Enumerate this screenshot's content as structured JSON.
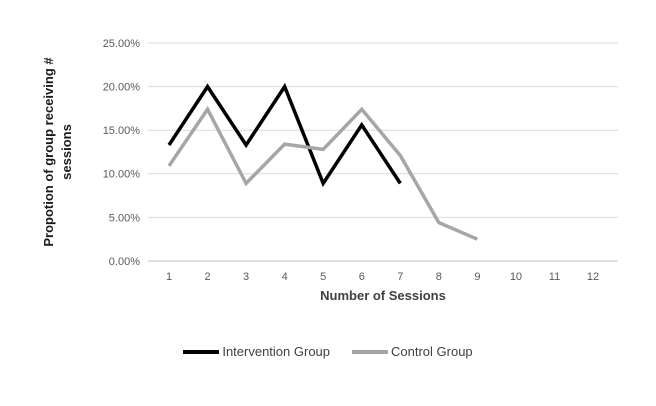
{
  "chart_data": {
    "type": "line",
    "title": "",
    "xlabel": "Number of Sessions",
    "ylabel": "Propotion of group receiving # sessions",
    "ylabel_lines": [
      "Propotion of group receiving #",
      "sessions"
    ],
    "x_categories": [
      "1",
      "2",
      "3",
      "4",
      "5",
      "6",
      "7",
      "8",
      "9",
      "10",
      "11",
      "12"
    ],
    "y_tick_labels": [
      "0.00%",
      "5.00%",
      "10.00%",
      "15.00%",
      "20.00%",
      "25.00%"
    ],
    "ylim": [
      0,
      25
    ],
    "grid": true,
    "legend_position": "bottom",
    "series": [
      {
        "name": "Intervention Group",
        "color": "#000000",
        "values": [
          13.3,
          20.0,
          13.3,
          20.0,
          8.9,
          15.6,
          8.9
        ]
      },
      {
        "name": "Control Group",
        "color": "#a6a6a6",
        "values": [
          10.9,
          17.4,
          8.9,
          13.4,
          12.8,
          17.4,
          12.1,
          4.4,
          2.5
        ]
      }
    ]
  },
  "colors": {
    "gridline": "#d9d9d9",
    "axis_line": "#bfbfbf",
    "tick_text": "#595959"
  }
}
